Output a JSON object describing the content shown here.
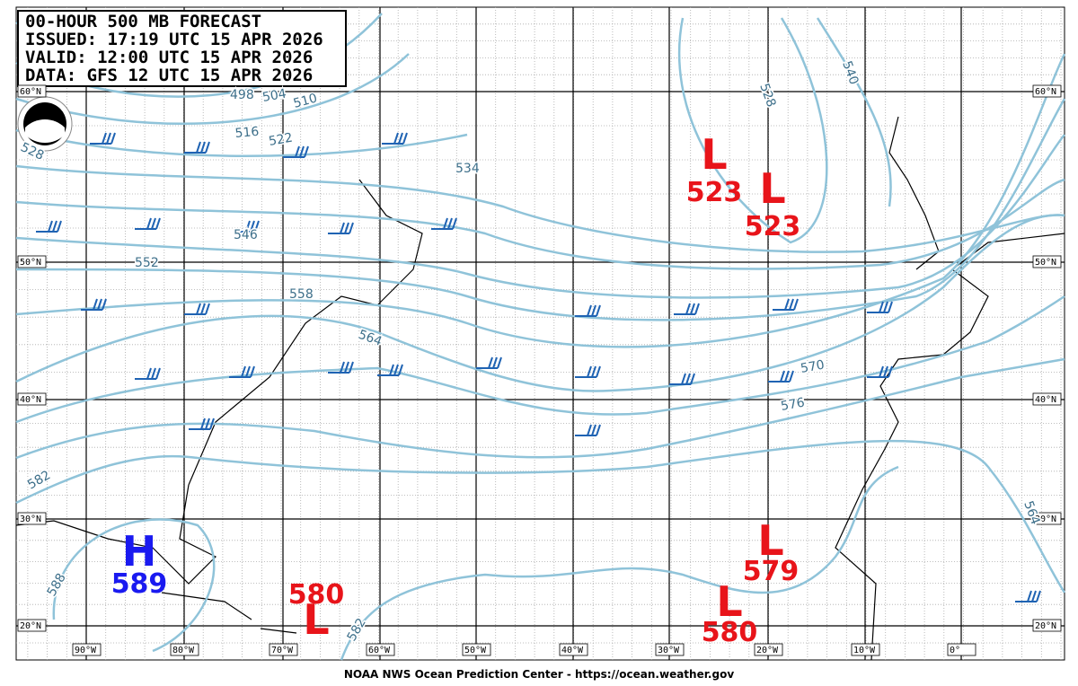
{
  "header": {
    "lines": [
      "00-HOUR 500 MB FORECAST",
      "ISSUED: 17:19 UTC 15 APR 2026",
      "VALID:  12:00 UTC 15 APR 2026",
      "DATA:  GFS 12 UTC 15 APR 2026"
    ]
  },
  "lat_labels": [
    "60°N",
    "50°N",
    "40°N",
    "30°N",
    "20°N"
  ],
  "lon_labels": [
    "90°W",
    "80°W",
    "70°W",
    "60°W",
    "50°W",
    "40°W",
    "30°W",
    "20°W",
    "10°W",
    "0°"
  ],
  "contour_labels": [
    498,
    504,
    510,
    516,
    522,
    528,
    528,
    534,
    540,
    546,
    552,
    558,
    564,
    570,
    576,
    582,
    588,
    564,
    582
  ],
  "centers": [
    {
      "symbol": "L",
      "value": 523
    },
    {
      "symbol": "L",
      "value": 523
    },
    {
      "symbol": "L",
      "value": 579
    },
    {
      "symbol": "L",
      "value": 580
    },
    {
      "symbol": "L",
      "value": 580
    },
    {
      "symbol": "H",
      "value": 589
    }
  ],
  "footer": "NOAA NWS Ocean Prediction Center - https://ocean.weather.gov"
}
